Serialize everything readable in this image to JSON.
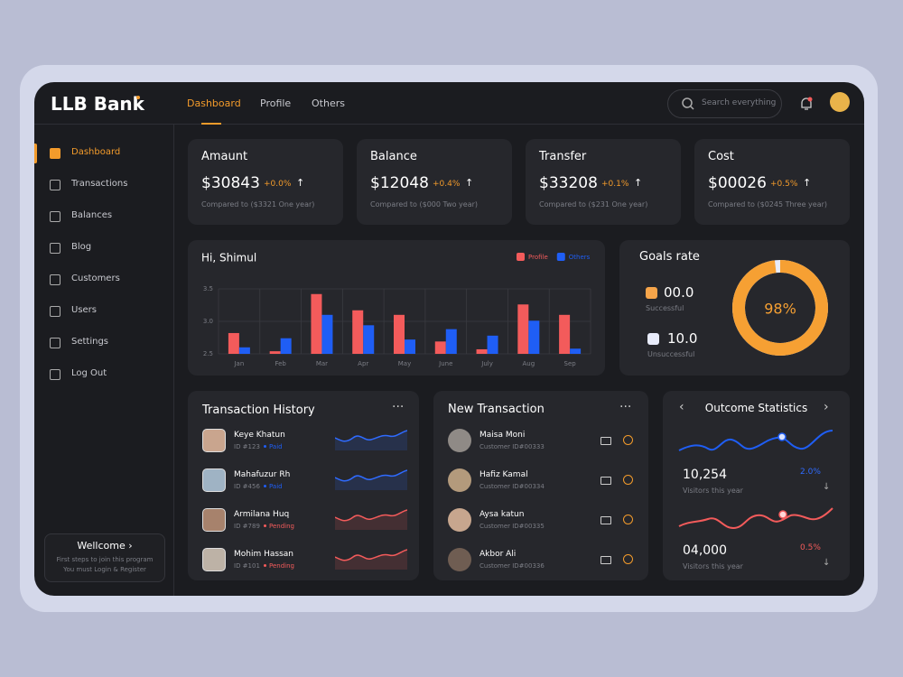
{
  "header": {
    "logo": "LLB Bank",
    "nav": [
      "Dashboard",
      "Profile",
      "Others"
    ],
    "search": "Search everything"
  },
  "sidebar": {
    "menu": [
      "Dashboard",
      "Transactions",
      "Balances",
      "Blog",
      "Customers",
      "Users",
      "Settings",
      "Log Out"
    ],
    "welcome": {
      "title": "Wellcome",
      "line1": "First steps to join this program",
      "line2": "You must Login & Register"
    }
  },
  "stats": [
    {
      "title": "Amaunt",
      "value": "$30843",
      "change": "+0.0%",
      "note": "Compared to ($3321 One year)"
    },
    {
      "title": "Balance",
      "value": "$12048",
      "change": "+0.4%",
      "note": "Compared to ($000 Two year)"
    },
    {
      "title": "Transfer",
      "value": "$33208",
      "change": "+0.1%",
      "note": "Compared to ($231 One year)"
    },
    {
      "title": "Cost",
      "value": "$00026",
      "change": "+0.5%",
      "note": "Compared to ($0245 Three year)"
    }
  ],
  "chart_data": {
    "type": "bar",
    "title": "Hi, Shimul",
    "categories": [
      "Jan",
      "Feb",
      "Mar",
      "Apr",
      "May",
      "June",
      "July",
      "Aug",
      "Sep"
    ],
    "series": [
      {
        "name": "Profile",
        "color": "#f35b5b",
        "values": [
          2.82,
          2.54,
          3.42,
          3.17,
          3.1,
          2.69,
          2.57,
          3.26,
          3.1
        ]
      },
      {
        "name": "Others",
        "color": "#1f5ef5",
        "values": [
          2.6,
          2.74,
          3.1,
          2.94,
          2.72,
          2.88,
          2.78,
          3.01,
          2.58
        ]
      }
    ],
    "ylim": [
      2.5,
      3.5
    ],
    "yticks": [
      2.5,
      {
        "value": 3,
        "label": "3.0"
      },
      3.5
    ],
    "grid": true
  },
  "goals": {
    "title": "Goals rate",
    "successful": "00.0",
    "successful_label": "Successful",
    "unsuccessful": "10.0",
    "unsuccessful_label": "Unsuccessful",
    "rate": {
      "value": 98,
      "label": "98%"
    }
  },
  "history": {
    "title": "Transaction History",
    "items": [
      {
        "name": "Keye Khatun",
        "id": "ID #123",
        "status": "Paid"
      },
      {
        "name": "Mahafuzur Rh",
        "id": "ID #456",
        "status": "Paid"
      },
      {
        "name": "Armilana Huq",
        "id": "ID #789",
        "status": "Pending"
      },
      {
        "name": "Mohim Hassan",
        "id": "ID #101",
        "status": "Pending"
      }
    ]
  },
  "new_transaction": {
    "title": "New Transaction",
    "items": [
      {
        "name": "Maisa Moni",
        "id": "Customer ID#00333"
      },
      {
        "name": "Hafiz Kamal",
        "id": "Customer ID#00334"
      },
      {
        "name": "Aysa katun",
        "id": "Customer ID#00335"
      },
      {
        "name": "Akbor Ali",
        "id": "Customer ID#00336"
      }
    ]
  },
  "outcome": {
    "title": "Outcome Statistics",
    "items": [
      {
        "value": "10,254",
        "label": "Visitors this year",
        "change": "2.0%"
      },
      {
        "value": "04,000",
        "label": "Visitors this year",
        "change": "0.5%"
      }
    ]
  }
}
